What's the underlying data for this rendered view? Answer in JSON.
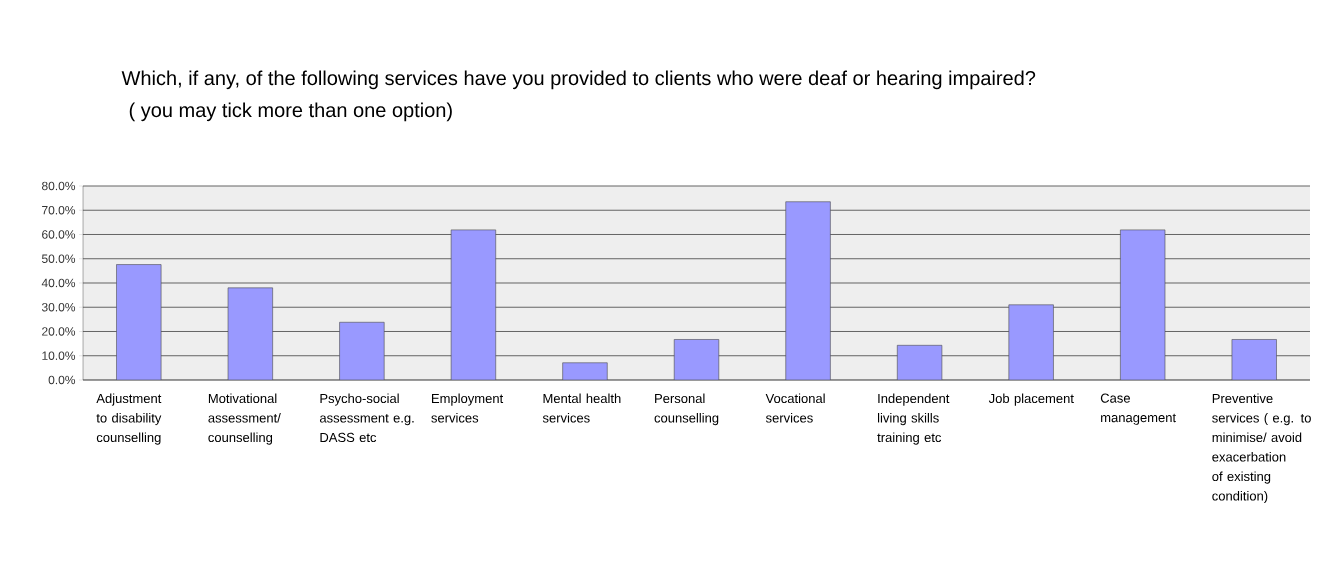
{
  "chart_data": {
    "type": "bar",
    "title": "Which, if any, of the following services have you provided to clients who were deaf or hearing impaired?",
    "subtitle": "( you may tick more than one option)",
    "categories": [
      "Adjustment to disability counselling",
      "Motivational assessment/ counselling",
      "Psycho-social assessment e.g. DASS etc",
      "Employment services",
      "Mental health services",
      "Personal counselling",
      "Vocational services",
      "Independent living skills training etc",
      "Job placement",
      "Case management",
      "Preventive services ( e.g. to minimise/ avoid exacerbation of existing condition)"
    ],
    "values": [
      47.6,
      38.0,
      23.8,
      61.9,
      7.1,
      16.7,
      73.5,
      14.3,
      31.0,
      61.9,
      16.7
    ],
    "color": "#9999ff",
    "ylim": [
      0,
      80
    ],
    "yticks": [
      {
        "value": 0,
        "label": "0.0%"
      },
      {
        "value": 10,
        "label": "10.0%"
      },
      {
        "value": 20,
        "label": "20.0%"
      },
      {
        "value": 30,
        "label": "30.0%"
      },
      {
        "value": 40,
        "label": "40.0%"
      },
      {
        "value": 50,
        "label": "50.0%"
      },
      {
        "value": 60,
        "label": "60.0%"
      },
      {
        "value": 70,
        "label": "70.0%"
      },
      {
        "value": 80,
        "label": "80.0%"
      }
    ],
    "grid": "y"
  }
}
